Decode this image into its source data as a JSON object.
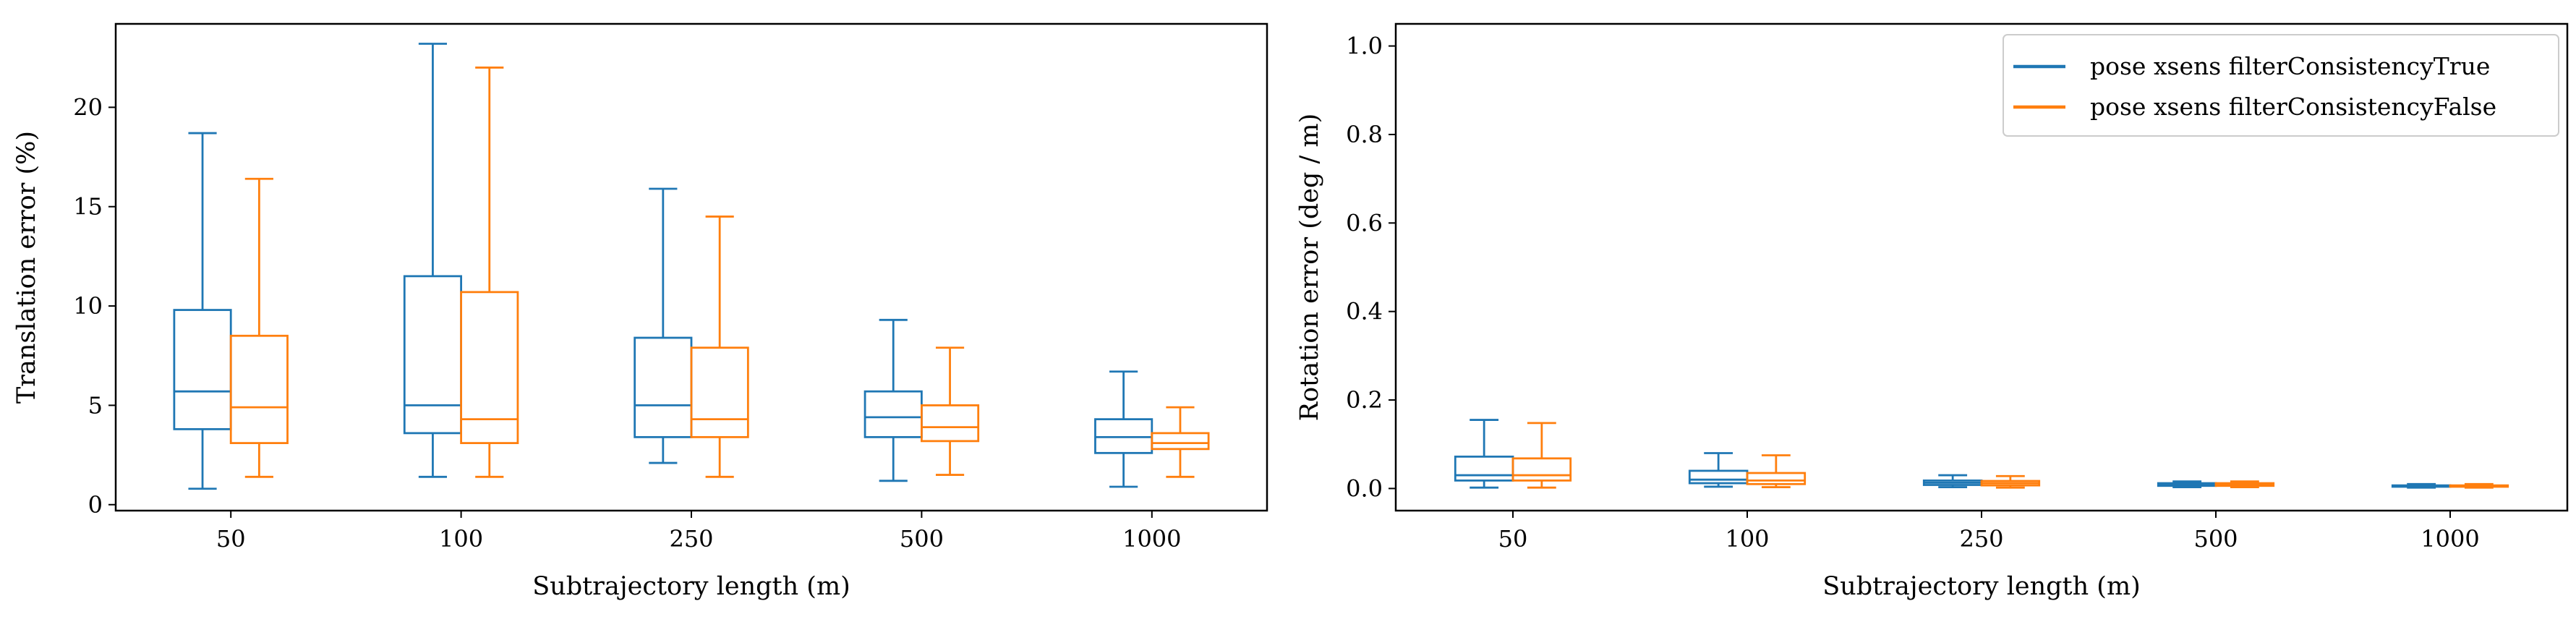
{
  "colors": {
    "series_a": "#1f77b4",
    "series_b": "#ff7f0e",
    "axes": "#000000"
  },
  "chart_data": [
    {
      "type": "box",
      "xlabel": "Subtrajectory length (m)",
      "ylabel": "Translation error (%)",
      "categories": [
        "50",
        "100",
        "250",
        "500",
        "1000"
      ],
      "ylim": [
        -0.3,
        24.2
      ],
      "yticks": [
        0,
        5,
        10,
        15,
        20
      ],
      "ytick_labels": [
        "0",
        "5",
        "10",
        "15",
        "20"
      ],
      "grid": false,
      "legend": null,
      "series": [
        {
          "name": "pose xsens filterConsistencyTrue",
          "color": "#1f77b4",
          "boxes": [
            {
              "min": 0.8,
              "q1": 3.8,
              "median": 5.7,
              "q3": 9.8,
              "max": 18.7
            },
            {
              "min": 1.4,
              "q1": 3.6,
              "median": 5.0,
              "q3": 11.5,
              "max": 23.2
            },
            {
              "min": 2.1,
              "q1": 3.4,
              "median": 5.0,
              "q3": 8.4,
              "max": 15.9
            },
            {
              "min": 1.2,
              "q1": 3.4,
              "median": 4.4,
              "q3": 5.7,
              "max": 9.3
            },
            {
              "min": 0.9,
              "q1": 2.6,
              "median": 3.4,
              "q3": 4.3,
              "max": 6.7
            }
          ]
        },
        {
          "name": "pose xsens filterConsistencyFalse",
          "color": "#ff7f0e",
          "boxes": [
            {
              "min": 1.4,
              "q1": 3.1,
              "median": 4.9,
              "q3": 8.5,
              "max": 16.4
            },
            {
              "min": 1.4,
              "q1": 3.1,
              "median": 4.3,
              "q3": 10.7,
              "max": 22.0
            },
            {
              "min": 1.4,
              "q1": 3.4,
              "median": 4.3,
              "q3": 7.9,
              "max": 14.5
            },
            {
              "min": 1.5,
              "q1": 3.2,
              "median": 3.9,
              "q3": 5.0,
              "max": 7.9
            },
            {
              "min": 1.4,
              "q1": 2.8,
              "median": 3.1,
              "q3": 3.6,
              "max": 4.9
            }
          ]
        }
      ]
    },
    {
      "type": "box",
      "xlabel": "Subtrajectory length (m)",
      "ylabel": "Rotation error (deg / m)",
      "categories": [
        "50",
        "100",
        "250",
        "500",
        "1000"
      ],
      "ylim": [
        -0.05,
        1.05
      ],
      "yticks": [
        0,
        0.2,
        0.4,
        0.6,
        0.8,
        1.0
      ],
      "ytick_labels": [
        "0.0",
        "0.2",
        "0.4",
        "0.6",
        "0.8",
        "1.0"
      ],
      "grid": false,
      "legend": "top-right",
      "series": [
        {
          "name": "pose xsens filterConsistencyTrue",
          "color": "#1f77b4",
          "boxes": [
            {
              "min": 0.002,
              "q1": 0.018,
              "median": 0.03,
              "q3": 0.072,
              "max": 0.155
            },
            {
              "min": 0.004,
              "q1": 0.012,
              "median": 0.02,
              "q3": 0.04,
              "max": 0.08
            },
            {
              "min": 0.003,
              "q1": 0.008,
              "median": 0.013,
              "q3": 0.018,
              "max": 0.03
            },
            {
              "min": 0.003,
              "q1": 0.006,
              "median": 0.009,
              "q3": 0.012,
              "max": 0.016
            },
            {
              "min": 0.002,
              "q1": 0.004,
              "median": 0.005,
              "q3": 0.007,
              "max": 0.01
            }
          ]
        },
        {
          "name": "pose xsens filterConsistencyFalse",
          "color": "#ff7f0e",
          "boxes": [
            {
              "min": 0.002,
              "q1": 0.018,
              "median": 0.03,
              "q3": 0.068,
              "max": 0.148
            },
            {
              "min": 0.003,
              "q1": 0.01,
              "median": 0.018,
              "q3": 0.035,
              "max": 0.075
            },
            {
              "min": 0.002,
              "q1": 0.007,
              "median": 0.012,
              "q3": 0.017,
              "max": 0.028
            },
            {
              "min": 0.003,
              "q1": 0.006,
              "median": 0.009,
              "q3": 0.012,
              "max": 0.016
            },
            {
              "min": 0.002,
              "q1": 0.004,
              "median": 0.005,
              "q3": 0.007,
              "max": 0.01
            }
          ]
        }
      ]
    }
  ]
}
